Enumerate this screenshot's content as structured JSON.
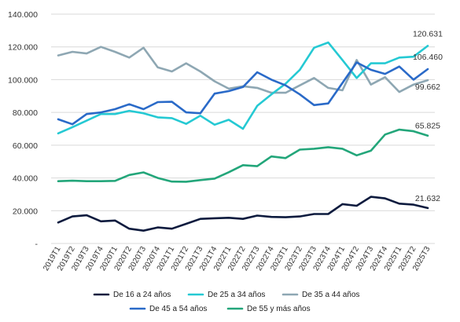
{
  "chart_data": {
    "type": "line",
    "title": "",
    "xlabel": "",
    "ylabel": "",
    "ylim": [
      0,
      140000
    ],
    "y_ticks": [
      {
        "value": 0,
        "label": "-"
      },
      {
        "value": 20000,
        "label": "20.000"
      },
      {
        "value": 40000,
        "label": "40.000"
      },
      {
        "value": 60000,
        "label": "60.000"
      },
      {
        "value": 80000,
        "label": "80.000"
      },
      {
        "value": 100000,
        "label": "100.000"
      },
      {
        "value": 120000,
        "label": "120.000"
      },
      {
        "value": 140000,
        "label": "140.000"
      }
    ],
    "grid": true,
    "legend_position": "bottom",
    "categories": [
      "2019T1",
      "2019T2",
      "2019T3",
      "2019T4",
      "2020T1",
      "2020T2",
      "2020T3",
      "2020T4",
      "2021T1",
      "2021T2",
      "2021T3",
      "2021T4",
      "2022T1",
      "2022T2",
      "2022T3",
      "2022T4",
      "2023T1",
      "2023T2",
      "2023T3",
      "2023T4",
      "2024T1",
      "2024T2",
      "2024T3",
      "2024T4",
      "2025T1",
      "2025T2",
      "2025T3"
    ],
    "series": [
      {
        "name": "De 16 a 24 años",
        "color": "#0d1b3e",
        "values": [
          12800,
          16500,
          17200,
          13500,
          14000,
          9000,
          7800,
          9800,
          9000,
          12000,
          15000,
          15400,
          15700,
          15000,
          17000,
          16200,
          16000,
          16500,
          18000,
          18000,
          24000,
          23000,
          28500,
          27500,
          24300,
          23700,
          21632
        ],
        "end_label": "21.632"
      },
      {
        "name": "De 25 a 34 años",
        "color": "#25c9d3",
        "values": [
          67200,
          71000,
          75000,
          79000,
          79000,
          81000,
          79500,
          77000,
          76500,
          73000,
          78000,
          72500,
          75500,
          70000,
          84000,
          91000,
          97500,
          106000,
          119500,
          122700,
          112000,
          101000,
          110000,
          110000,
          113500,
          114000,
          120631
        ],
        "end_label": "120.631"
      },
      {
        "name": "De 35 a 44 años",
        "color": "#8ea7b3",
        "values": [
          114800,
          117000,
          116000,
          120000,
          117000,
          113500,
          119500,
          107500,
          105000,
          110000,
          105000,
          99000,
          94500,
          96000,
          95000,
          92000,
          92000,
          96500,
          101000,
          95000,
          93500,
          112000,
          97000,
          101500,
          92500,
          97000,
          99662
        ],
        "end_label": "99.662"
      },
      {
        "name": "De 45 a 54 años",
        "color": "#2a6ac8",
        "values": [
          75800,
          72800,
          79000,
          80000,
          82000,
          85000,
          82000,
          86300,
          86500,
          80000,
          79500,
          91500,
          93000,
          95500,
          104500,
          100000,
          96500,
          91000,
          84500,
          85500,
          98000,
          110500,
          106000,
          103500,
          108000,
          100000,
          106460
        ],
        "end_label": "106.460"
      },
      {
        "name": "De 55 y más años",
        "color": "#23a67a",
        "values": [
          38000,
          38300,
          38000,
          38000,
          38200,
          41800,
          43400,
          40000,
          37800,
          37700,
          38700,
          39600,
          43500,
          47800,
          47200,
          53100,
          52100,
          57300,
          57800,
          58800,
          57800,
          53800,
          56600,
          66500,
          69500,
          68500,
          65825
        ],
        "end_label": "65.825"
      }
    ]
  }
}
